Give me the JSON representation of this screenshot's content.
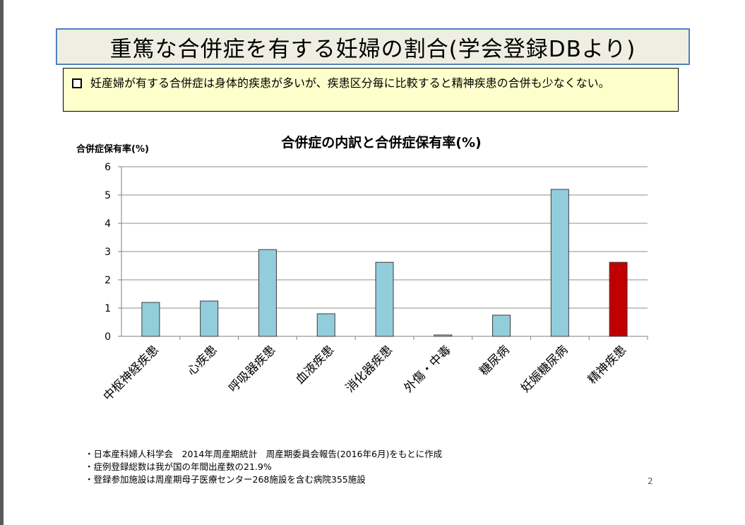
{
  "slide": {
    "title": "重篤な合併症を有する妊婦の割合(学会登録DBより)",
    "note": "妊産婦が有する合併症は身体的疾患が多いが、疾患区分毎に比較すると精神疾患の合併も少なくない。",
    "footnotes": [
      "・日本産科婦人科学会　2014年周産期統計　周産期委員会報告(2016年6月)をもとに作成",
      "・症例登録総数は我が国の年間出産数の21.9%",
      "・登録参加施設は周産期母子医療センター268施設を含む病院355施設"
    ],
    "page_number": "2"
  },
  "chart_data": {
    "type": "bar",
    "title": "合併症の内訳と合併症保有率(%)",
    "ylabel": "合併症保有率(%)",
    "xlabel": "",
    "ylim": [
      0,
      6
    ],
    "yticks": [
      "0",
      "1",
      "2",
      "3",
      "4",
      "5",
      "6"
    ],
    "grid": true,
    "categories": [
      "中枢神経疾患",
      "心疾患",
      "呼吸器疾患",
      "血液疾患",
      "消化器疾患",
      "外傷・中毒",
      "糖尿病",
      "妊娠糖尿病",
      "精神疾患"
    ],
    "values": [
      1.2,
      1.25,
      3.07,
      0.8,
      2.62,
      0.05,
      0.75,
      5.2,
      2.62
    ],
    "colors": [
      "#92cddc",
      "#92cddc",
      "#92cddc",
      "#92cddc",
      "#92cddc",
      "#92cddc",
      "#92cddc",
      "#92cddc",
      "#c00000"
    ]
  }
}
